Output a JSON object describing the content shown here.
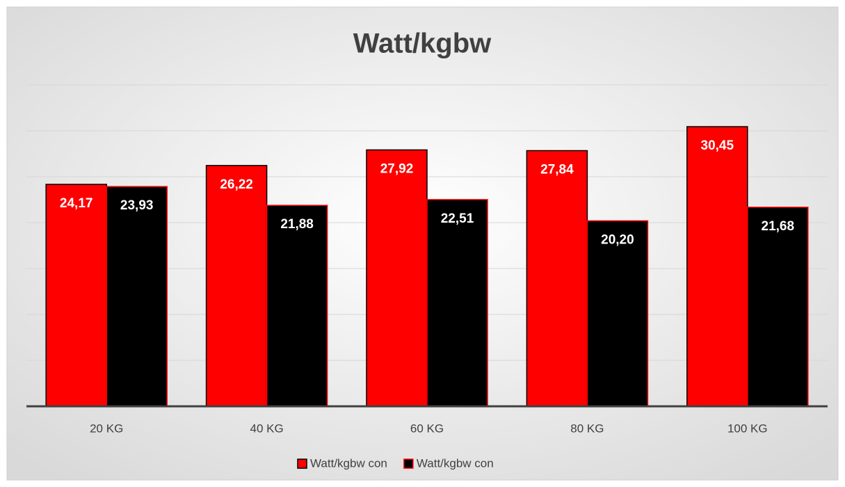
{
  "chart_data": {
    "type": "bar",
    "title": "Watt/kgbw",
    "categories": [
      "20 KG",
      "40 KG",
      "60 KG",
      "80 KG",
      "100 KG"
    ],
    "series": [
      {
        "name": "Watt/kgbw con",
        "color": "#ff0000",
        "edge": "#000000",
        "values": [
          24.17,
          26.22,
          27.92,
          27.84,
          30.45
        ],
        "value_labels": [
          "24,17",
          "26,22",
          "27,92",
          "27,84",
          "30,45"
        ]
      },
      {
        "name": "Watt/kgbw con",
        "color": "#000000",
        "edge": "#ff0000",
        "values": [
          23.93,
          21.88,
          22.51,
          20.2,
          21.68
        ],
        "value_labels": [
          "23,93",
          "21,88",
          "22,51",
          "20,20",
          "21,68"
        ]
      }
    ],
    "ylim": [
      0,
      35
    ],
    "yticks": [
      0,
      5,
      10,
      15,
      20,
      25,
      30,
      35
    ],
    "grid": true,
    "legend": "bottom"
  }
}
